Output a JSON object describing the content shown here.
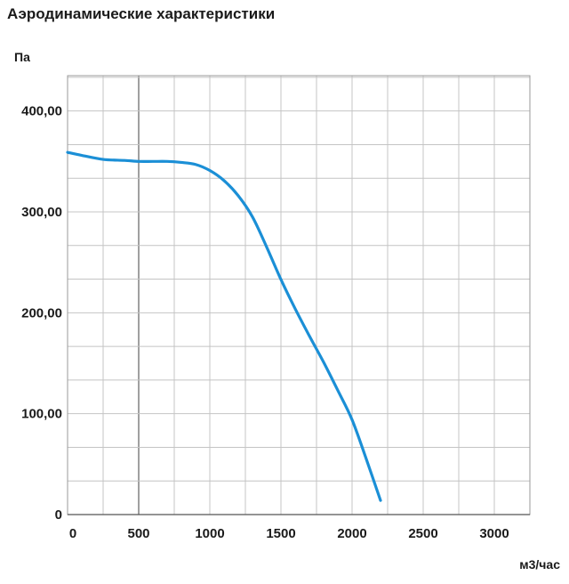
{
  "chart_data": {
    "type": "line",
    "title": "Аэродинамические характеристики",
    "ylabel": "Па",
    "xlabel": "м3/час",
    "xlim": [
      0,
      3250
    ],
    "ylim": [
      0,
      400
    ],
    "x_ticks": [
      0,
      500,
      1000,
      1500,
      2000,
      2500,
      3000
    ],
    "x_tick_labels": [
      "0",
      "500",
      "1000",
      "1500",
      "2000",
      "2500",
      "3000"
    ],
    "y_ticks": [
      0,
      100,
      200,
      300,
      400
    ],
    "y_tick_labels": [
      "0",
      "100,00",
      "200,00",
      "300,00",
      "400,00"
    ],
    "grid": true,
    "line_color": "#1b8fd6",
    "series": [
      {
        "x": [
          0,
          100,
          250,
          400,
          500,
          600,
          700,
          800,
          900,
          1000,
          1100,
          1200,
          1300,
          1400,
          1500,
          1600,
          1700,
          1800,
          1900,
          2000,
          2100,
          2200
        ],
        "values": [
          359,
          356,
          352,
          351,
          350,
          350,
          350,
          349,
          347,
          341,
          331,
          316,
          295,
          265,
          233,
          204,
          177,
          151,
          123,
          94,
          55,
          14
        ]
      }
    ]
  }
}
